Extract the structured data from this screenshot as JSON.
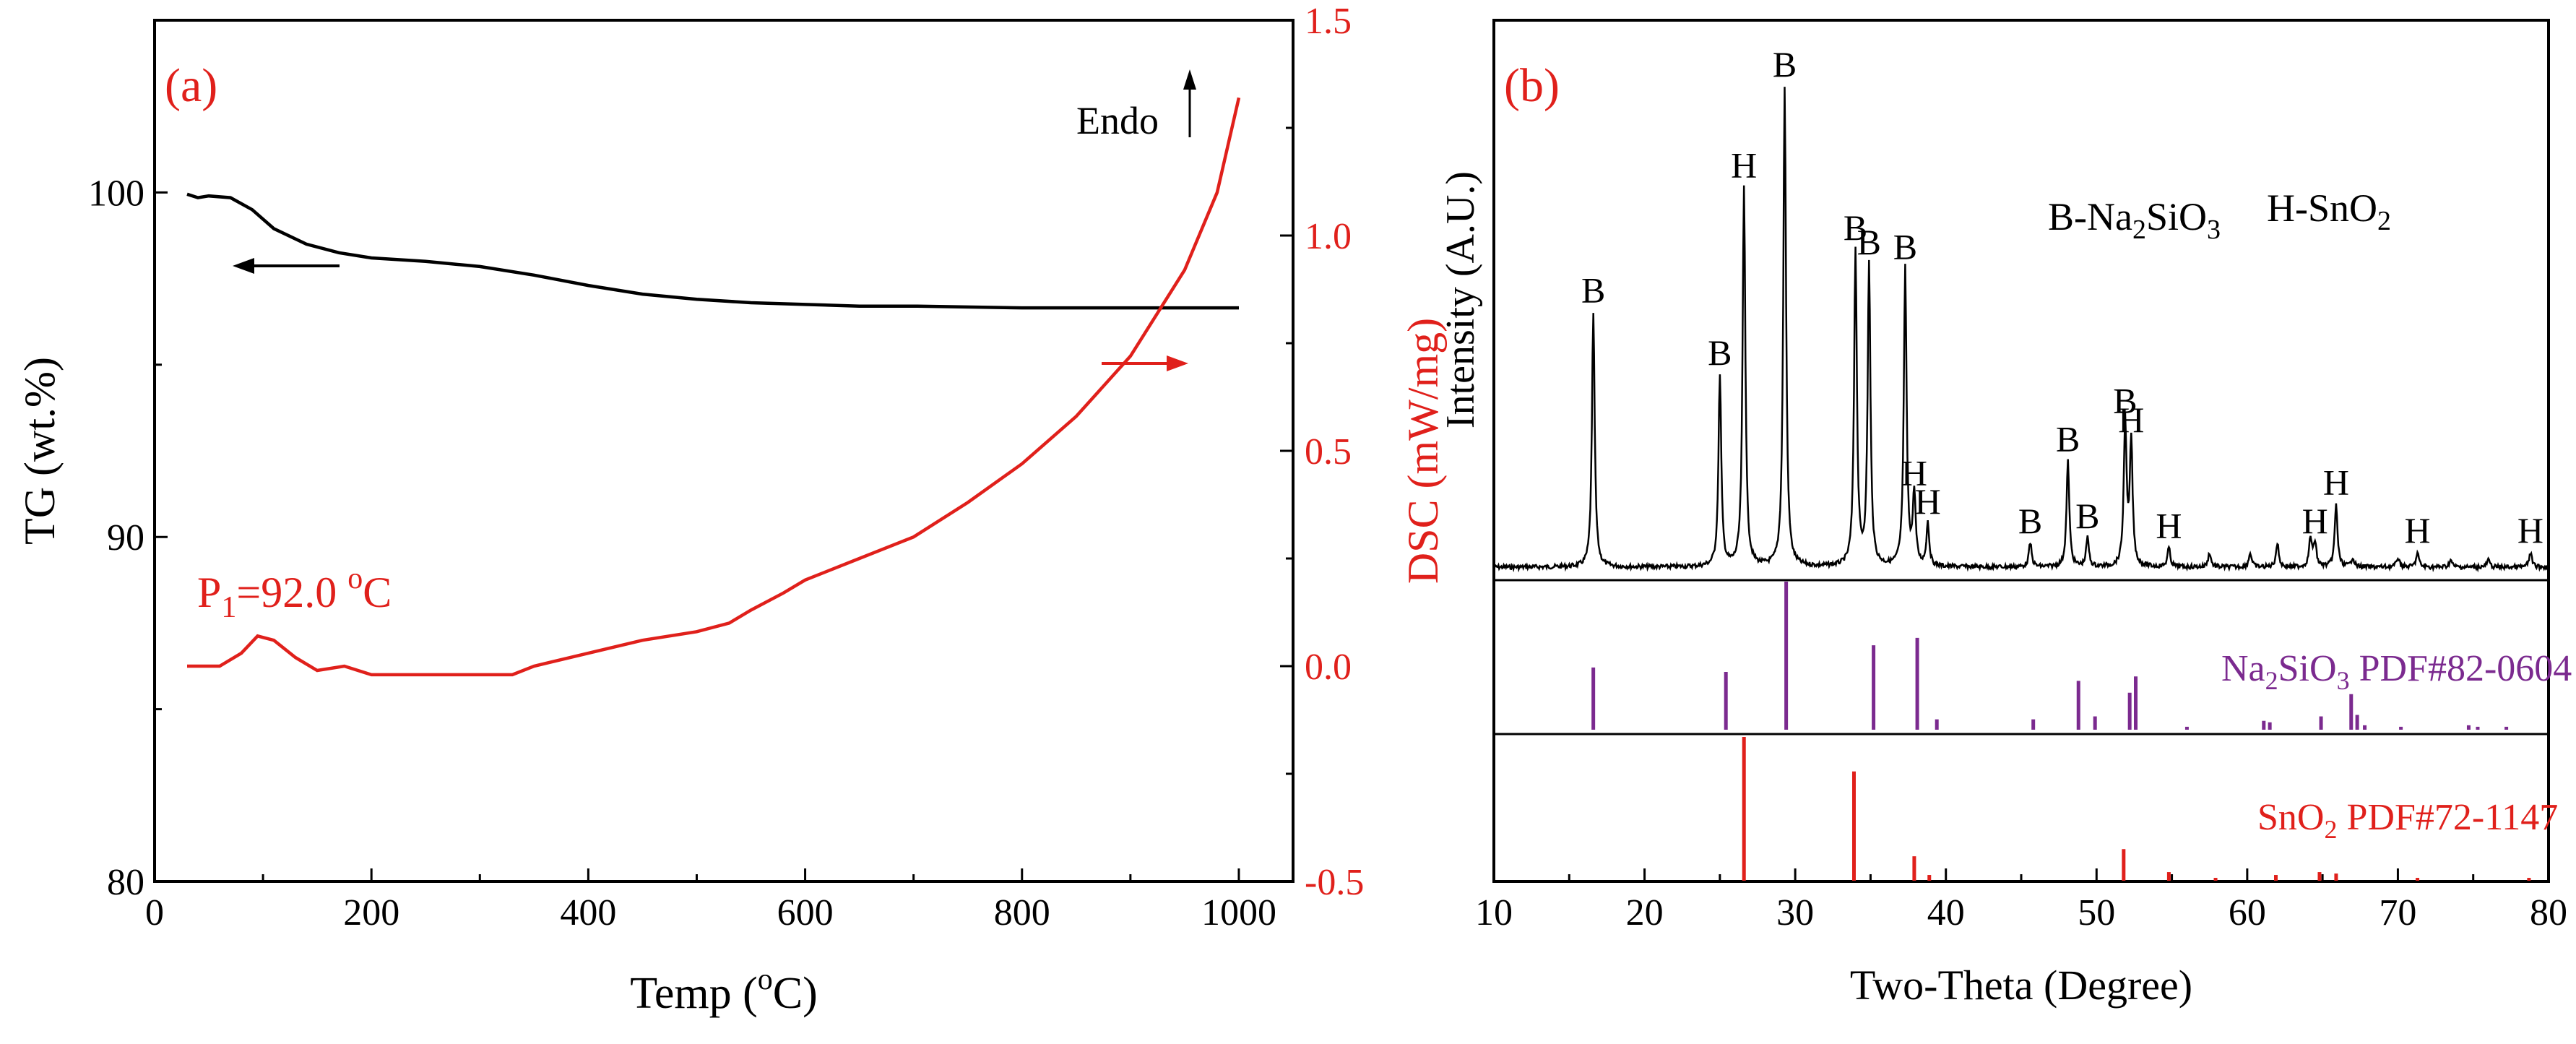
{
  "colors": {
    "black": "#000000",
    "red": "#e0201b",
    "purple": "#7b2a8f"
  },
  "chart_data": [
    {
      "type": "line",
      "panel_label": "(a)",
      "xlabel_main": "Temp (",
      "xlabel_sup": "o",
      "xlabel_tail": "C)",
      "ylabel_left": "TG (wt.%)",
      "ylabel_right": "DSC (mW/mg)",
      "xlim": [
        0,
        1050
      ],
      "ylim_left": [
        80,
        105
      ],
      "ylim_right": [
        -0.5,
        1.5
      ],
      "x_ticks": [
        "0",
        "200",
        "400",
        "600",
        "800",
        "1000"
      ],
      "y_left_ticks": [
        "80",
        "90",
        "100"
      ],
      "y_right_ticks": [
        "-0.5",
        "0.0",
        "0.5",
        "1.0",
        "1.5"
      ],
      "annotation": {
        "main": "P",
        "sub": "1",
        "value": "=92.0 ",
        "sup": "o",
        "tail": "C"
      },
      "endo_label": "Endo",
      "series": [
        {
          "name": "TG",
          "axis": "left",
          "color": "#000000",
          "points": [
            [
              30,
              99.95
            ],
            [
              40,
              99.85
            ],
            [
              50,
              99.9
            ],
            [
              70,
              99.85
            ],
            [
              90,
              99.5
            ],
            [
              110,
              98.95
            ],
            [
              140,
              98.5
            ],
            [
              170,
              98.25
            ],
            [
              200,
              98.1
            ],
            [
              250,
              98.0
            ],
            [
              300,
              97.85
            ],
            [
              350,
              97.6
            ],
            [
              400,
              97.3
            ],
            [
              450,
              97.05
            ],
            [
              500,
              96.9
            ],
            [
              550,
              96.8
            ],
            [
              600,
              96.75
            ],
            [
              650,
              96.7
            ],
            [
              700,
              96.7
            ],
            [
              800,
              96.65
            ],
            [
              900,
              96.65
            ],
            [
              1000,
              96.65
            ]
          ]
        },
        {
          "name": "DSC",
          "axis": "right",
          "color": "#e0201b",
          "points": [
            [
              30,
              0.0
            ],
            [
              60,
              0.0
            ],
            [
              80,
              0.03
            ],
            [
              95,
              0.07
            ],
            [
              110,
              0.06
            ],
            [
              130,
              0.02
            ],
            [
              150,
              -0.01
            ],
            [
              175,
              0.0
            ],
            [
              200,
              -0.02
            ],
            [
              250,
              -0.02
            ],
            [
              300,
              -0.02
            ],
            [
              330,
              -0.02
            ],
            [
              350,
              0.0
            ],
            [
              400,
              0.03
            ],
            [
              450,
              0.06
            ],
            [
              500,
              0.08
            ],
            [
              530,
              0.1
            ],
            [
              550,
              0.13
            ],
            [
              580,
              0.17
            ],
            [
              600,
              0.2
            ],
            [
              650,
              0.25
            ],
            [
              700,
              0.3
            ],
            [
              750,
              0.38
            ],
            [
              800,
              0.47
            ],
            [
              850,
              0.58
            ],
            [
              900,
              0.72
            ],
            [
              950,
              0.92
            ],
            [
              980,
              1.1
            ],
            [
              1000,
              1.32
            ]
          ]
        }
      ]
    },
    {
      "type": "line",
      "panel_label": "(b)",
      "xlabel": "Two-Theta (Degree)",
      "ylabel": "Intensity (A.U.)",
      "xlim": [
        10,
        80
      ],
      "x_ticks": [
        "10",
        "20",
        "30",
        "40",
        "50",
        "60",
        "70",
        "80"
      ],
      "legend_b_main": "B-Na",
      "legend_b_sub1": "2",
      "legend_b_mid": "SiO",
      "legend_b_sub2": "3",
      "legend_h_main": "H-SnO",
      "legend_h_sub": "2",
      "ref1_label_main": "Na",
      "ref1_label_sub1": "2",
      "ref1_label_mid": "SiO",
      "ref1_label_sub2": "3",
      "ref1_label_tail": " PDF#82-0604",
      "ref2_label_main": "SnO",
      "ref2_label_sub": "2",
      "ref2_label_tail": " PDF#72-1147",
      "peaks": [
        {
          "x": 16.6,
          "h": 0.53,
          "label": "B"
        },
        {
          "x": 25.0,
          "h": 0.4,
          "label": "B"
        },
        {
          "x": 26.6,
          "h": 0.79,
          "label": "H"
        },
        {
          "x": 29.3,
          "h": 1.0,
          "label": "B"
        },
        {
          "x": 34.0,
          "h": 0.66,
          "label": "B"
        },
        {
          "x": 34.9,
          "h": 0.63,
          "label": "B"
        },
        {
          "x": 37.3,
          "h": 0.62,
          "label": "B"
        },
        {
          "x": 37.9,
          "h": 0.15,
          "label": "H"
        },
        {
          "x": 38.8,
          "h": 0.09,
          "label": "H"
        },
        {
          "x": 45.6,
          "h": 0.05,
          "label": "B"
        },
        {
          "x": 48.1,
          "h": 0.22,
          "label": "B"
        },
        {
          "x": 49.4,
          "h": 0.06,
          "label": "B"
        },
        {
          "x": 51.9,
          "h": 0.3,
          "label": "B"
        },
        {
          "x": 52.3,
          "h": 0.26,
          "label": "H"
        },
        {
          "x": 54.8,
          "h": 0.04,
          "label": "H"
        },
        {
          "x": 64.5,
          "h": 0.05,
          "label": "H"
        },
        {
          "x": 65.9,
          "h": 0.13,
          "label": "H"
        },
        {
          "x": 71.3,
          "h": 0.03,
          "label": "H"
        },
        {
          "x": 78.8,
          "h": 0.03,
          "label": "H"
        }
      ],
      "minor_peaks": [
        [
          57.5,
          0.03
        ],
        [
          60.2,
          0.03
        ],
        [
          62.0,
          0.05
        ],
        [
          64.2,
          0.06
        ],
        [
          67.0,
          0.02
        ],
        [
          70.0,
          0.02
        ],
        [
          73.5,
          0.015
        ],
        [
          76.0,
          0.015
        ]
      ],
      "ref1_sticks": [
        [
          16.6,
          0.42
        ],
        [
          25.4,
          0.39
        ],
        [
          29.4,
          1.0
        ],
        [
          35.2,
          0.57
        ],
        [
          38.1,
          0.62
        ],
        [
          39.4,
          0.07
        ],
        [
          45.8,
          0.07
        ],
        [
          48.8,
          0.33
        ],
        [
          49.9,
          0.09
        ],
        [
          52.2,
          0.25
        ],
        [
          52.6,
          0.36
        ],
        [
          56.0,
          0.02
        ],
        [
          61.1,
          0.06
        ],
        [
          61.5,
          0.05
        ],
        [
          64.9,
          0.09
        ],
        [
          66.9,
          0.24
        ],
        [
          67.3,
          0.1
        ],
        [
          67.8,
          0.03
        ],
        [
          70.2,
          0.02
        ],
        [
          74.7,
          0.03
        ],
        [
          75.3,
          0.02
        ],
        [
          77.2,
          0.02
        ]
      ],
      "ref2_sticks": [
        [
          26.6,
          1.0
        ],
        [
          33.9,
          0.76
        ],
        [
          37.9,
          0.17
        ],
        [
          38.9,
          0.04
        ],
        [
          51.8,
          0.22
        ],
        [
          54.8,
          0.06
        ],
        [
          57.9,
          0.02
        ],
        [
          61.9,
          0.04
        ],
        [
          64.8,
          0.06
        ],
        [
          65.9,
          0.05
        ],
        [
          71.3,
          0.02
        ],
        [
          78.7,
          0.02
        ]
      ]
    }
  ]
}
